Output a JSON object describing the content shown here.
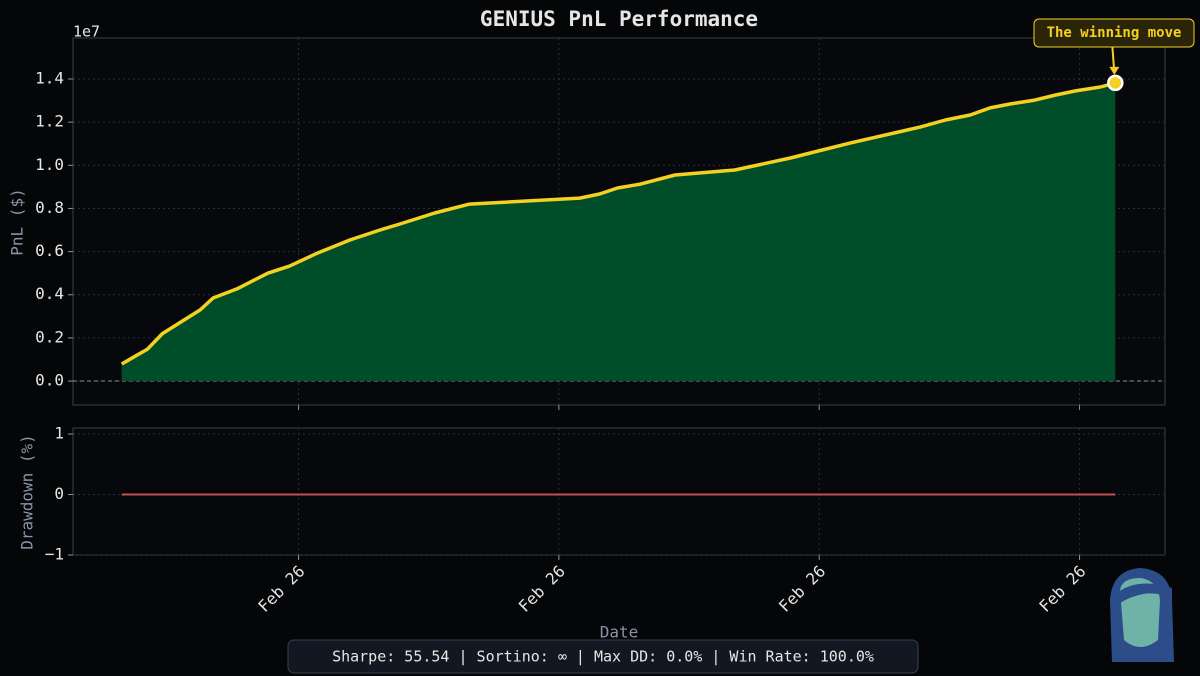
{
  "chart_data": [
    {
      "type": "line",
      "title": "GENIUS PnL Performance",
      "offset_label": "1e7",
      "ylabel": "PnL ($)",
      "x": [
        0,
        2.6,
        4.1,
        7.9,
        9.2,
        11.6,
        14.7,
        16.9,
        19.7,
        23,
        26,
        28,
        31.5,
        35,
        46.1,
        48.1,
        49.9,
        52.2,
        55.7,
        61.7,
        67.3,
        69.3,
        73.3,
        77.3,
        80.4,
        82.9,
        85.4,
        87.4,
        89.4,
        91.9,
        94,
        96,
        98.5,
        100
      ],
      "series": [
        {
          "name": "PnL",
          "color": "#f5d020",
          "fill": "#00512c",
          "values": [
            0.079,
            0.148,
            0.22,
            0.33,
            0.385,
            0.427,
            0.5,
            0.533,
            0.593,
            0.654,
            0.7,
            0.728,
            0.779,
            0.82,
            0.848,
            0.867,
            0.895,
            0.913,
            0.955,
            0.978,
            1.034,
            1.057,
            1.103,
            1.145,
            1.178,
            1.21,
            1.233,
            1.266,
            1.284,
            1.302,
            1.326,
            1.345,
            1.363,
            1.382
          ]
        }
      ],
      "annotation": "The winning move",
      "xlim": [
        -4.9,
        105
      ],
      "ylim": [
        -0.111,
        1.59
      ],
      "xticks": [
        17.8,
        44,
        70.2,
        96.4
      ],
      "yticks": [
        {
          "value": 0,
          "label": "0.0"
        },
        {
          "value": 0.2,
          "label": "0.2"
        },
        {
          "value": 0.4,
          "label": "0.4"
        },
        {
          "value": 0.6,
          "label": "0.6"
        },
        {
          "value": 0.8,
          "label": "0.8"
        },
        {
          "value": 1,
          "label": "1.0"
        },
        {
          "value": 1.2,
          "label": "1.2"
        },
        {
          "value": 1.4,
          "label": "1.4"
        }
      ],
      "grid": true
    },
    {
      "type": "line",
      "ylabel": "Drawdown (%)",
      "xlabel": "Date",
      "footer": "Sharpe: 55.54  |  Sortino: ∞  |  Max DD: 0.0%  |  Win Rate: 100.0%",
      "x": [
        0,
        100
      ],
      "series": [
        {
          "name": "Drawdown",
          "color": "#c0504d",
          "values": [
            0,
            0
          ]
        }
      ],
      "xlim": [
        -4.9,
        105
      ],
      "ylim": [
        -1,
        1.1
      ],
      "xticks": [
        {
          "value": 17.8,
          "label": "Feb 26"
        },
        {
          "value": 44,
          "label": "Feb 26"
        },
        {
          "value": 70.2,
          "label": "Feb 26"
        },
        {
          "value": 96.4,
          "label": "Feb 26"
        }
      ],
      "yticks": [
        {
          "value": -1,
          "label": "−1"
        },
        0,
        1
      ],
      "grid": true
    }
  ]
}
